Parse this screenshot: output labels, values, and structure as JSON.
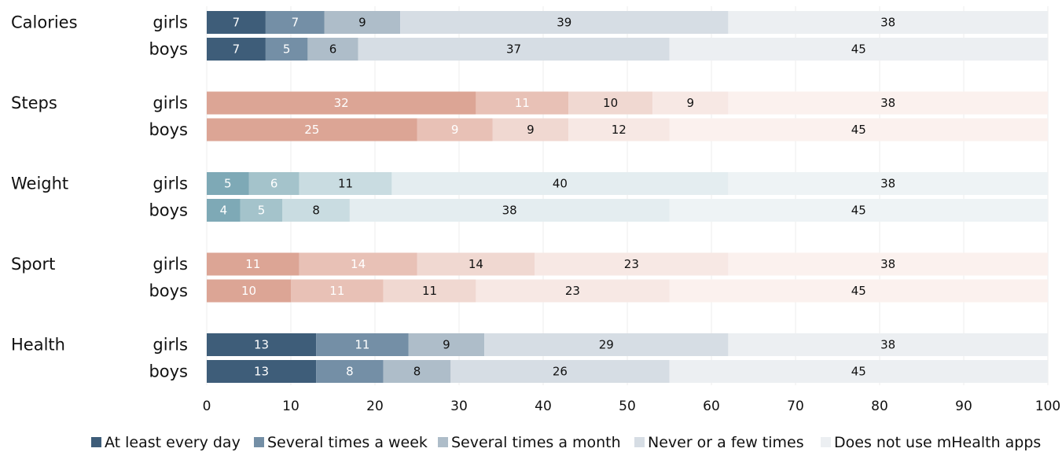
{
  "chart_data": {
    "type": "bar",
    "orientation": "horizontal",
    "stacked": true,
    "xlim": [
      0,
      100
    ],
    "xticks": [
      0,
      10,
      20,
      30,
      40,
      50,
      60,
      70,
      80,
      90,
      100
    ],
    "grid": true,
    "legend_position": "bottom",
    "legend": [
      "At least every day",
      "Several times a week",
      "Several times a month",
      "Never or a few times",
      "Does not use mHealth apps"
    ],
    "palettes": {
      "blue": [
        "#3e5d79",
        "#748fa6",
        "#aebdc9",
        "#d6dde4",
        "#eceff2"
      ],
      "teal": [
        "#7ea9b6",
        "#a4c3cb",
        "#c9dce1",
        "#e4edf0",
        "#eef3f5"
      ],
      "salmon": [
        "#dca595",
        "#e8c1b6",
        "#f0d8d1",
        "#f7e8e4",
        "#fbf1ee"
      ]
    },
    "label_colors": {
      "blue": [
        "#ffffff",
        "#ffffff",
        "#111111",
        "#111111",
        "#111111"
      ],
      "teal": [
        "#ffffff",
        "#ffffff",
        "#111111",
        "#111111",
        "#111111"
      ],
      "salmon": [
        "#ffffff",
        "#ffffff",
        "#111111",
        "#111111",
        "#111111"
      ]
    },
    "legend_colors": [
      "#3e5d79",
      "#748fa6",
      "#aebdc9",
      "#d6dde4",
      "#eceff2"
    ],
    "categories": [
      {
        "name": "Calories",
        "palette": "blue",
        "bars": [
          {
            "group": "girls",
            "values": [
              7,
              7,
              9,
              39,
              38
            ]
          },
          {
            "group": "boys",
            "values": [
              7,
              5,
              6,
              37,
              45
            ]
          }
        ]
      },
      {
        "name": "Steps",
        "palette": "salmon",
        "bars": [
          {
            "group": "girls",
            "values": [
              32,
              11,
              10,
              9,
              38
            ]
          },
          {
            "group": "boys",
            "values": [
              25,
              9,
              9,
              12,
              45
            ]
          }
        ]
      },
      {
        "name": "Weight",
        "palette": "teal",
        "bars": [
          {
            "group": "girls",
            "values": [
              5,
              6,
              11,
              40,
              38
            ]
          },
          {
            "group": "boys",
            "values": [
              4,
              5,
              8,
              38,
              45
            ]
          }
        ]
      },
      {
        "name": "Sport",
        "palette": "salmon",
        "bars": [
          {
            "group": "girls",
            "values": [
              11,
              14,
              14,
              23,
              38
            ]
          },
          {
            "group": "boys",
            "values": [
              10,
              11,
              11,
              23,
              45
            ]
          }
        ]
      },
      {
        "name": "Health",
        "palette": "blue",
        "bars": [
          {
            "group": "girls",
            "values": [
              13,
              11,
              9,
              29,
              38
            ]
          },
          {
            "group": "boys",
            "values": [
              13,
              8,
              8,
              26,
              45
            ]
          }
        ]
      }
    ]
  }
}
